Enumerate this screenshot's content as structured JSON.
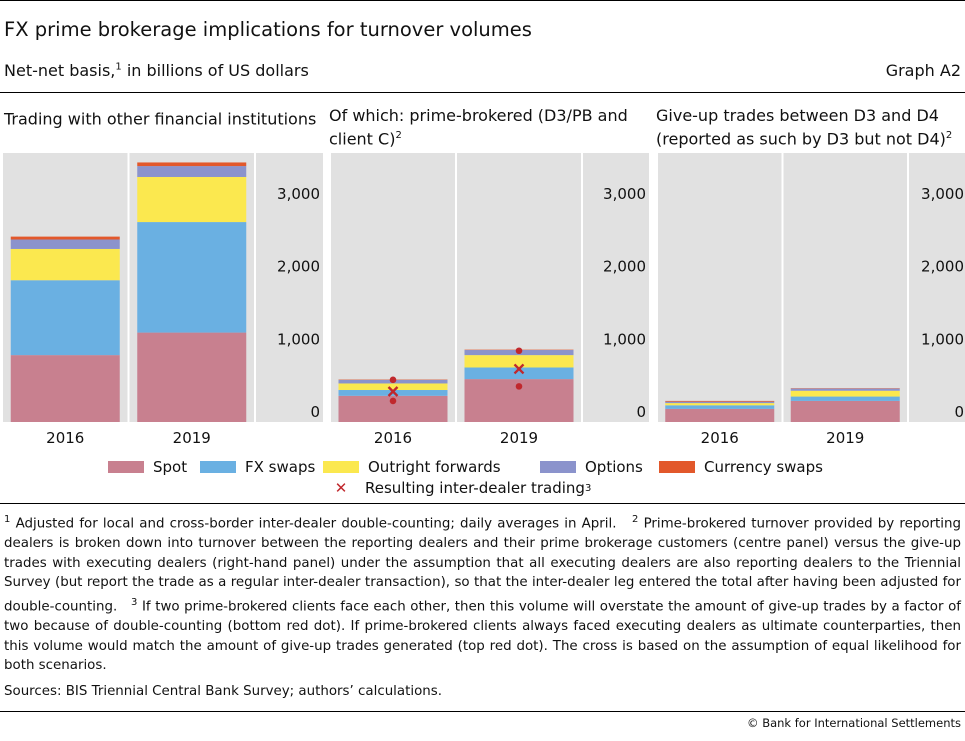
{
  "header": {
    "title": "FX prime brokerage implications for turnover volumes",
    "subtitle_pre": "Net-net basis,",
    "subtitle_sup": "1",
    "subtitle_post": " in billions of US dollars",
    "graph_number": "Graph A2"
  },
  "panels": [
    {
      "title": "Trading with other financial institutions",
      "title_sup": ""
    },
    {
      "title": "Of which: prime-brokered (D3/PB and client C)",
      "title_sup": "2"
    },
    {
      "title": "Give-up trades between D3 and D4 (reported as such by D3 but not D4)",
      "title_sup": "2"
    }
  ],
  "legend": {
    "items": [
      "Spot",
      "FX swaps",
      "Outright forwards",
      "Options",
      "Currency swaps"
    ],
    "marker_label": "Resulting inter-dealer trading",
    "marker_sup": "3"
  },
  "colors": {
    "Spot": "#c8808f",
    "FX swaps": "#6ab0e2",
    "Outright forwards": "#fbe84f",
    "Options": "#8b93cc",
    "Currency swaps": "#e2582b",
    "panel_bg": "#e1e1e1",
    "marker": "#c0282d"
  },
  "chart_data": [
    {
      "type": "bar",
      "stacked": true,
      "title": "Trading with other financial institutions",
      "categories": [
        "2016",
        "2019"
      ],
      "series": [
        {
          "name": "Spot",
          "values": [
            920,
            1230
          ]
        },
        {
          "name": "FX swaps",
          "values": [
            1030,
            1520
          ]
        },
        {
          "name": "Outright forwards",
          "values": [
            430,
            620
          ]
        },
        {
          "name": "Options",
          "values": [
            130,
            150
          ]
        },
        {
          "name": "Currency swaps",
          "values": [
            40,
            50
          ]
        }
      ],
      "yticks": [
        0,
        1000,
        2000,
        3000
      ],
      "ytick_labels": [
        "0",
        "1,000",
        "2,000",
        "3,000"
      ],
      "ylim": [
        0,
        3700
      ],
      "y_axis_side": "right",
      "grid": false
    },
    {
      "type": "bar",
      "stacked": true,
      "title": "Of which: prime-brokered (D3/PB and client C)",
      "categories": [
        "2016",
        "2019"
      ],
      "series": [
        {
          "name": "Spot",
          "values": [
            360,
            590
          ]
        },
        {
          "name": "FX swaps",
          "values": [
            80,
            160
          ]
        },
        {
          "name": "Outright forwards",
          "values": [
            90,
            170
          ]
        },
        {
          "name": "Options",
          "values": [
            50,
            70
          ]
        },
        {
          "name": "Currency swaps",
          "values": [
            5,
            5
          ]
        }
      ],
      "markers": {
        "cross": [
          420,
          730
        ],
        "top_dot": [
          580,
          980
        ],
        "bottom_dot": [
          290,
          490
        ]
      },
      "yticks": [
        0,
        1000,
        2000,
        3000
      ],
      "ytick_labels": [
        "0",
        "1,000",
        "2,000",
        "3,000"
      ],
      "ylim": [
        0,
        3700
      ],
      "y_axis_side": "right",
      "grid": false
    },
    {
      "type": "bar",
      "stacked": true,
      "title": "Give-up trades between D3 and D4 (reported as such by D3 but not D4)",
      "categories": [
        "2016",
        "2019"
      ],
      "series": [
        {
          "name": "Spot",
          "values": [
            180,
            290
          ]
        },
        {
          "name": "FX swaps",
          "values": [
            50,
            60
          ]
        },
        {
          "name": "Outright forwards",
          "values": [
            30,
            80
          ]
        },
        {
          "name": "Options",
          "values": [
            20,
            30
          ]
        },
        {
          "name": "Currency swaps",
          "values": [
            10,
            5
          ]
        }
      ],
      "yticks": [
        0,
        1000,
        2000,
        3000
      ],
      "ytick_labels": [
        "0",
        "1,000",
        "2,000",
        "3,000"
      ],
      "ylim": [
        0,
        3700
      ],
      "y_axis_side": "right",
      "grid": false
    }
  ],
  "footnotes": [
    {
      "sup": "1",
      "text": "Adjusted for local and cross-border inter-dealer double-counting; daily averages in April."
    },
    {
      "sup": "2",
      "text": "Prime-brokered turnover provided by reporting dealers is broken down into turnover between the reporting dealers and their prime brokerage customers (centre panel) versus the give-up trades with executing dealers (right-hand panel) under the assumption that all executing dealers are also reporting dealers to the Triennial Survey (but report the trade as a regular inter-dealer transaction), so that the inter-dealer leg entered the total after having been adjusted for double-counting."
    },
    {
      "sup": "3",
      "text": "If two prime-brokered clients face each other, then this volume will overstate the amount of give-up trades by a factor of two because of double-counting (bottom red dot). If prime-brokered clients always faced executing dealers as ultimate counterparties, then this volume would match the amount of give-up trades generated (top red dot). The cross is based on the assumption of equal likelihood for both scenarios."
    }
  ],
  "sources": "Sources: BIS Triennial Central Bank Survey; authors’ calculations.",
  "copyright": "© Bank for International Settlements"
}
